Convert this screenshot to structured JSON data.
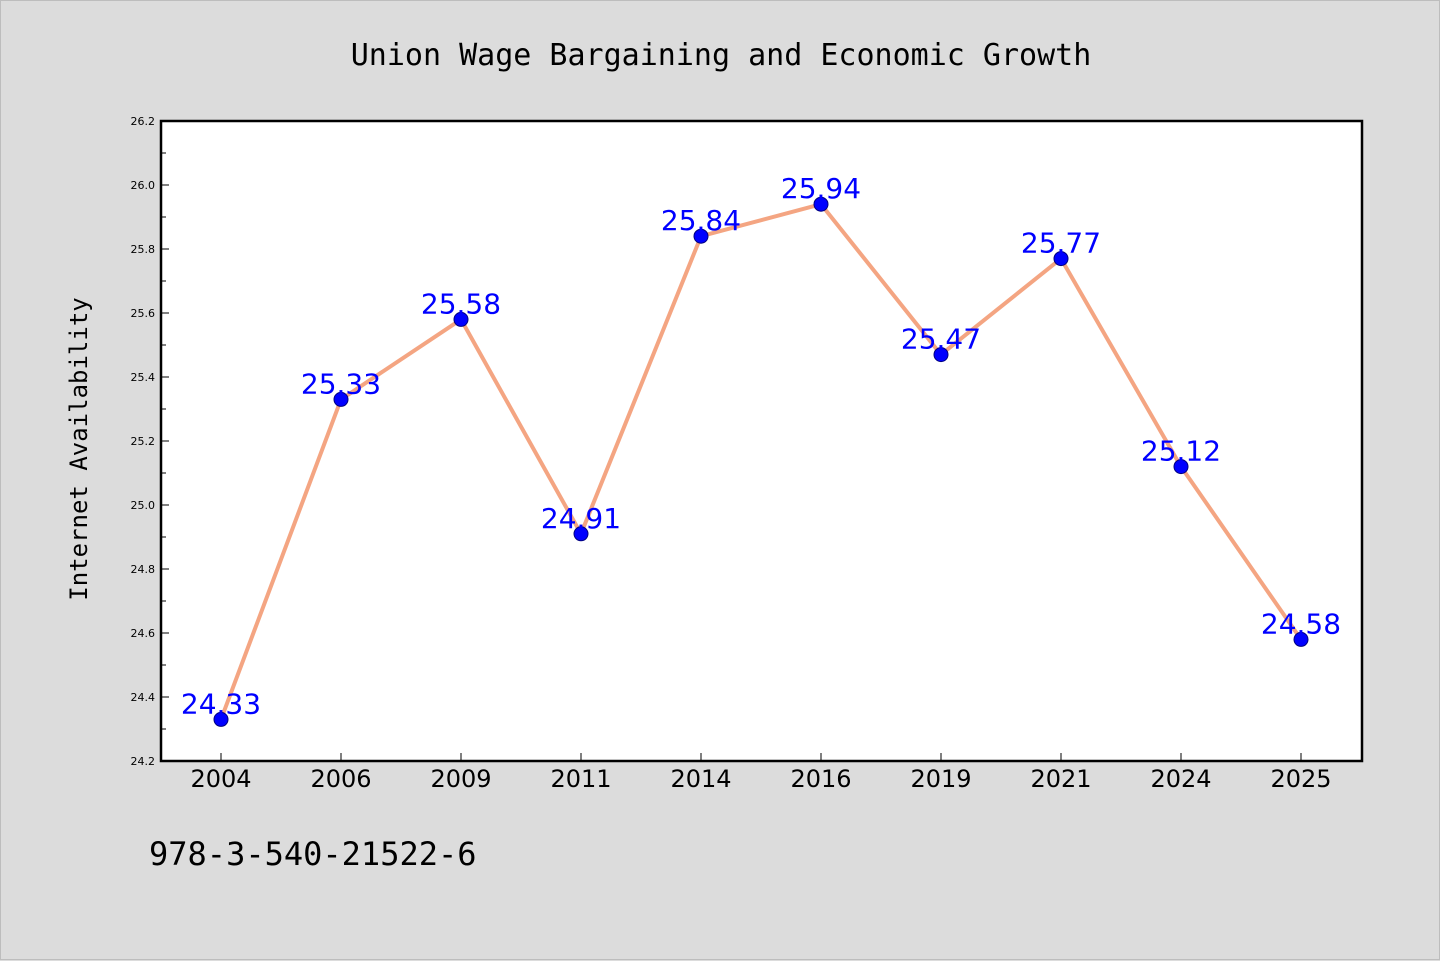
{
  "chart_data": {
    "type": "line",
    "title": "Union Wage Bargaining and Economic Growth",
    "xlabel": "",
    "ylabel": "Internet Availability",
    "categories": [
      "2004",
      "2006",
      "2009",
      "2011",
      "2014",
      "2016",
      "2019",
      "2021",
      "2024",
      "2025"
    ],
    "series": [
      {
        "values": [
          24.33,
          25.33,
          25.58,
          24.91,
          25.84,
          25.94,
          25.47,
          25.77,
          25.12,
          24.58
        ],
        "labels": [
          "24.33",
          "25.33",
          "25.58",
          "24.91",
          "25.84",
          "25.94",
          "25.47",
          "25.77",
          "25.12",
          "24.58"
        ]
      }
    ],
    "ylim": [
      24.2,
      26.2
    ],
    "yticks": [
      "24.2",
      "24.4",
      "24.6",
      "24.8",
      "25.0",
      "25.2",
      "25.4",
      "25.6",
      "25.8",
      "26.0",
      "26.2"
    ],
    "grid": false,
    "colors": {
      "line": "#f4a582",
      "marker": "#0000ff",
      "marker_edge": "#000080",
      "label": "#0000ff"
    }
  },
  "footer": {
    "code": "978-3-540-21522-6"
  }
}
